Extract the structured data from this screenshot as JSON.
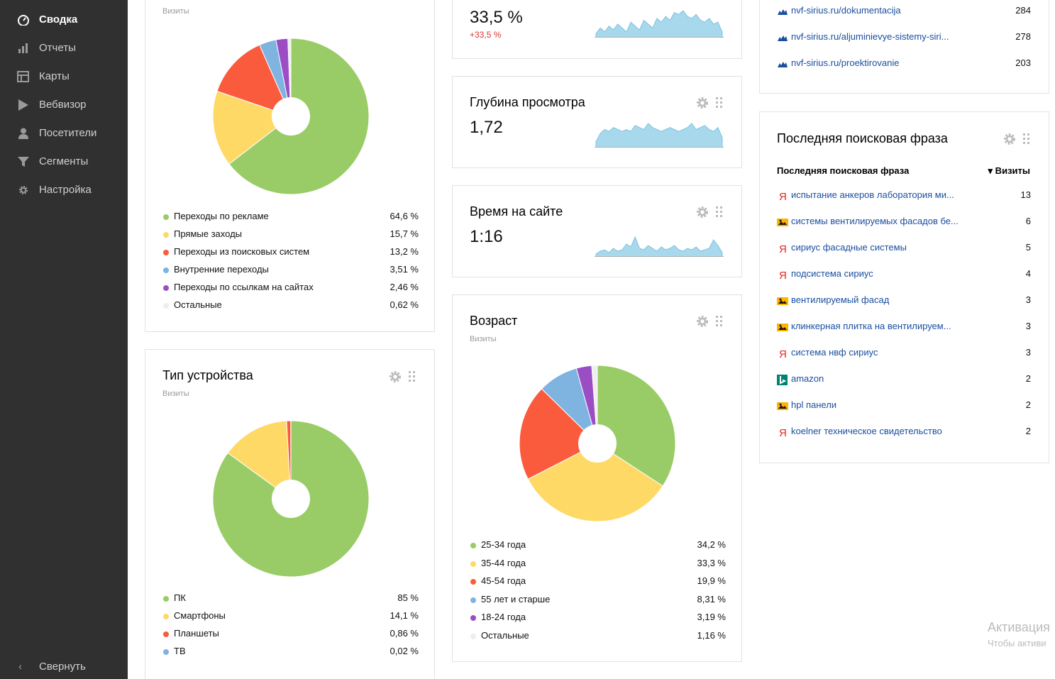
{
  "sidebar": {
    "items": [
      {
        "label": "Сводка",
        "icon": "dashboard-icon"
      },
      {
        "label": "Отчеты",
        "icon": "bar-chart-icon"
      },
      {
        "label": "Карты",
        "icon": "map-grid-icon"
      },
      {
        "label": "Вебвизор",
        "icon": "play-icon"
      },
      {
        "label": "Посетители",
        "icon": "user-icon"
      },
      {
        "label": "Сегменты",
        "icon": "funnel-icon"
      },
      {
        "label": "Настройка",
        "icon": "gear-icon"
      }
    ],
    "collapse_label": "Свернуть"
  },
  "traffic": {
    "subtitle": "Визиты",
    "chart_data": {
      "type": "pie",
      "categories": [
        "Переходы по рекламе",
        "Прямые заходы",
        "Переходы из поисковых систем",
        "Внутренние переходы",
        "Переходы по ссылкам на сайтах",
        "Остальные"
      ],
      "values": [
        64.6,
        15.7,
        13.2,
        3.51,
        2.46,
        0.62
      ],
      "labels": [
        "64,6 %",
        "15,7 %",
        "13,2 %",
        "3,51 %",
        "2,46 %",
        "0,62 %"
      ],
      "colors": [
        "#99cc66",
        "#ffd966",
        "#fb5b3d",
        "#7fb3e0",
        "#9b4ec4",
        "#eeeeee"
      ]
    }
  },
  "device": {
    "title": "Тип устройства",
    "subtitle": "Визиты",
    "chart_data": {
      "type": "pie",
      "categories": [
        "ПК",
        "Смартфоны",
        "Планшеты",
        "ТВ"
      ],
      "values": [
        85,
        14.1,
        0.86,
        0.02
      ],
      "labels": [
        "85 %",
        "14,1 %",
        "0,86 %",
        "0,02 %"
      ],
      "colors": [
        "#99cc66",
        "#ffd966",
        "#fb5b3d",
        "#7fb3e0"
      ]
    }
  },
  "bounce": {
    "value": "33,5 %",
    "delta": "+33,5 %",
    "chart_data": {
      "type": "area",
      "x": [
        1,
        2,
        3,
        4,
        5,
        6,
        7,
        8,
        9,
        10,
        11,
        12,
        13,
        14,
        15,
        16,
        17,
        18,
        19,
        20,
        21,
        22,
        23,
        24,
        25,
        26,
        27,
        28,
        29,
        30
      ],
      "values": [
        2,
        5,
        3,
        6,
        4,
        7,
        5,
        3,
        8,
        6,
        4,
        9,
        7,
        5,
        10,
        8,
        11,
        9,
        13,
        12,
        14,
        11,
        10,
        12,
        9,
        8,
        10,
        7,
        8,
        3
      ]
    }
  },
  "depth": {
    "title": "Глубина просмотра",
    "value": "1,72",
    "chart_data": {
      "type": "area",
      "x": [
        1,
        2,
        3,
        4,
        5,
        6,
        7,
        8,
        9,
        10,
        11,
        12,
        13,
        14,
        15,
        16,
        17,
        18,
        19,
        20,
        21,
        22,
        23,
        24,
        25,
        26,
        27,
        28,
        29,
        30
      ],
      "values": [
        3,
        7,
        9,
        8,
        10,
        9,
        8,
        9,
        8,
        11,
        10,
        9,
        12,
        10,
        9,
        8,
        9,
        10,
        9,
        8,
        9,
        10,
        12,
        9,
        10,
        11,
        9,
        8,
        10,
        5
      ]
    }
  },
  "time": {
    "title": "Время на сайте",
    "value": "1:16",
    "chart_data": {
      "type": "area",
      "x": [
        1,
        2,
        3,
        4,
        5,
        6,
        7,
        8,
        9,
        10,
        11,
        12,
        13,
        14,
        15,
        16,
        17,
        18,
        19,
        20,
        21,
        22,
        23,
        24,
        25,
        26,
        27,
        28,
        29,
        30
      ],
      "values": [
        2,
        4,
        5,
        3,
        6,
        4,
        5,
        9,
        7,
        14,
        6,
        5,
        8,
        6,
        4,
        7,
        5,
        6,
        8,
        5,
        4,
        6,
        5,
        7,
        4,
        5,
        6,
        12,
        8,
        3
      ]
    }
  },
  "age": {
    "title": "Возраст",
    "subtitle": "Визиты",
    "chart_data": {
      "type": "pie",
      "categories": [
        "25-34 года",
        "35-44 года",
        "45-54 года",
        "55 лет и старше",
        "18-24 года",
        "Остальные"
      ],
      "values": [
        34.2,
        33.3,
        19.9,
        8.31,
        3.19,
        1.16
      ],
      "labels": [
        "34,2 %",
        "33,3 %",
        "19,9 %",
        "8,31 %",
        "3,19 %",
        "1,16 %"
      ],
      "colors": [
        "#99cc66",
        "#ffd966",
        "#fb5b3d",
        "#7fb3e0",
        "#9b4ec4",
        "#eeeeee"
      ]
    }
  },
  "pages": {
    "rows": [
      {
        "text": "nvf-sirius.ru/dokumentacija",
        "count": "284"
      },
      {
        "text": "nvf-sirius.ru/aljuminievye-sistemy-siri...",
        "count": "278"
      },
      {
        "text": "nvf-sirius.ru/proektirovanie",
        "count": "203"
      }
    ]
  },
  "search": {
    "title": "Последняя поисковая фраза",
    "col_phrase": "Последняя поисковая фраза",
    "col_visits": "▾ Визиты",
    "rows": [
      {
        "engine": "yandex",
        "text": "испытание анкеров лаборатория ми...",
        "count": "13"
      },
      {
        "engine": "mail",
        "text": "системы вентилируемых фасадов бе...",
        "count": "6"
      },
      {
        "engine": "yandex",
        "text": "сириус фасадные системы",
        "count": "5"
      },
      {
        "engine": "yandex",
        "text": "подсистема сириус",
        "count": "4"
      },
      {
        "engine": "mail",
        "text": "вентилируемый фасад",
        "count": "3"
      },
      {
        "engine": "mail",
        "text": "клинкерная плитка на вентилируем...",
        "count": "3"
      },
      {
        "engine": "yandex",
        "text": "система нвф сириус",
        "count": "3"
      },
      {
        "engine": "bing",
        "text": "amazon",
        "count": "2"
      },
      {
        "engine": "mail",
        "text": "hpl панели",
        "count": "2"
      },
      {
        "engine": "yandex",
        "text": "koelner техническое свидетельство",
        "count": "2"
      }
    ]
  },
  "watermark": {
    "line1": "Активация",
    "line2": "Чтобы активи"
  }
}
